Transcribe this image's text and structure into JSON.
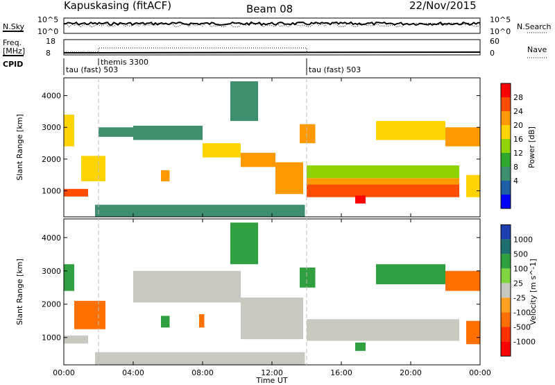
{
  "header": {
    "station": "Kapuskasing (fitACF)",
    "beam": "Beam 08",
    "date": "22/Nov/2015"
  },
  "strip_panels": {
    "nsky": {
      "left_label": "N.Sky",
      "left_ticks": [
        "10^5",
        "10^0"
      ],
      "right_ticks": [
        "10^5",
        "10^0"
      ],
      "right_label": "N.Search"
    },
    "freq": {
      "left_label_1": "Freq.",
      "left_label_2": "[MHz]",
      "left_ticks": [
        "18",
        "8"
      ],
      "right_ticks": [
        "60",
        "0"
      ],
      "right_label": "Nave"
    },
    "cpid": {
      "label": "CPID",
      "segments": [
        "tau (fast) 503",
        "themis 3300",
        "tau (fast) 503"
      ]
    }
  },
  "x_axis": {
    "label": "Time UT",
    "ticks": [
      "00:00",
      "04:00",
      "08:00",
      "12:00",
      "16:00",
      "20:00",
      "00:00"
    ]
  },
  "chart_data": [
    {
      "type": "heatmap",
      "title": "",
      "xlabel": "Time UT",
      "ylabel": "Slant Range [km]",
      "xlim_hours": [
        0,
        24
      ],
      "ylim_km": [
        180,
        4560
      ],
      "yticks": [
        "1000",
        "2000",
        "3000",
        "4000"
      ],
      "colorbar": {
        "label": "Power [dB]",
        "ticks": [
          "28",
          "24",
          "20",
          "16",
          "12",
          "8",
          "4"
        ],
        "colors": [
          "#ff0000",
          "#ff4d00",
          "#ff9900",
          "#ffd400",
          "#8fd400",
          "#2fa82f",
          "#3f8f6f",
          "#1f5fa8",
          "#0000ff"
        ]
      },
      "regions": [
        {
          "t0": 0.0,
          "t1": 1.4,
          "r0": 820,
          "r1": 1060,
          "v": 26
        },
        {
          "t0": 0.0,
          "t1": 0.6,
          "r0": 2400,
          "r1": 3400,
          "v": 18
        },
        {
          "t0": 1.0,
          "t1": 2.4,
          "r0": 1300,
          "r1": 2100,
          "v": 16
        },
        {
          "t0": 5.6,
          "t1": 6.1,
          "r0": 1300,
          "r1": 1650,
          "v": 20
        },
        {
          "t0": 1.8,
          "t1": 13.9,
          "r0": 180,
          "r1": 560,
          "v": 8
        },
        {
          "t0": 2.0,
          "t1": 4.0,
          "r0": 2700,
          "r1": 3000,
          "v": 6
        },
        {
          "t0": 4.0,
          "t1": 8.0,
          "r0": 2600,
          "r1": 3050,
          "v": 8
        },
        {
          "t0": 8.0,
          "t1": 10.2,
          "r0": 2050,
          "r1": 2500,
          "v": 18
        },
        {
          "t0": 10.2,
          "t1": 12.2,
          "r0": 1750,
          "r1": 2200,
          "v": 20
        },
        {
          "t0": 12.2,
          "t1": 13.8,
          "r0": 900,
          "r1": 1900,
          "v": 20
        },
        {
          "t0": 9.6,
          "t1": 11.2,
          "r0": 3200,
          "r1": 4450,
          "v": 8
        },
        {
          "t0": 13.6,
          "t1": 14.5,
          "r0": 2500,
          "r1": 3100,
          "v": 22
        },
        {
          "t0": 14.0,
          "t1": 22.8,
          "r0": 800,
          "r1": 1200,
          "v": 26
        },
        {
          "t0": 14.0,
          "t1": 22.8,
          "r0": 1200,
          "r1": 1400,
          "v": 22
        },
        {
          "t0": 14.0,
          "t1": 22.8,
          "r0": 1400,
          "r1": 1800,
          "v": 13
        },
        {
          "t0": 16.8,
          "t1": 17.4,
          "r0": 600,
          "r1": 850,
          "v": 28
        },
        {
          "t0": 22.0,
          "t1": 24.0,
          "r0": 2400,
          "r1": 3000,
          "v": 22
        },
        {
          "t0": 18.0,
          "t1": 22.0,
          "r0": 2600,
          "r1": 3200,
          "v": 16
        },
        {
          "t0": 23.2,
          "t1": 24.0,
          "r0": 800,
          "r1": 1500,
          "v": 18
        }
      ]
    },
    {
      "type": "heatmap",
      "title": "",
      "xlabel": "Time UT",
      "ylabel": "Slant Range [km]",
      "xlim_hours": [
        0,
        24
      ],
      "ylim_km": [
        180,
        4560
      ],
      "yticks": [
        "1000",
        "2000",
        "3000",
        "4000"
      ],
      "colorbar": {
        "label": "Velocity [m s^-1]",
        "ticks": [
          "1000",
          "500",
          "100",
          "25",
          "-25",
          "-100",
          "-500",
          "-1000"
        ],
        "colors": [
          "#1f3fb0",
          "#1f6f6f",
          "#2f9f3f",
          "#7fd43f",
          "#c8c8c0",
          "#ffa020",
          "#ff7000",
          "#ff3000",
          "#ff0000"
        ]
      },
      "regions": [
        {
          "t0": 0.0,
          "t1": 1.4,
          "r0": 820,
          "r1": 1060,
          "v": 0
        },
        {
          "t0": 0.6,
          "t1": 2.4,
          "r0": 1250,
          "r1": 2100,
          "v": -300
        },
        {
          "t0": 0.0,
          "t1": 0.6,
          "r0": 2400,
          "r1": 3200,
          "v": 150
        },
        {
          "t0": 5.6,
          "t1": 6.1,
          "r0": 1300,
          "r1": 1650,
          "v": 150
        },
        {
          "t0": 7.8,
          "t1": 8.1,
          "r0": 1300,
          "r1": 1700,
          "v": -150
        },
        {
          "t0": 1.8,
          "t1": 13.9,
          "r0": 180,
          "r1": 560,
          "v": 0
        },
        {
          "t0": 4.0,
          "t1": 10.2,
          "r0": 2050,
          "r1": 3000,
          "v": 0
        },
        {
          "t0": 10.2,
          "t1": 13.8,
          "r0": 950,
          "r1": 2200,
          "v": 0
        },
        {
          "t0": 9.6,
          "t1": 11.2,
          "r0": 3200,
          "r1": 4450,
          "v": 60
        },
        {
          "t0": 13.6,
          "t1": 14.5,
          "r0": 2500,
          "r1": 3100,
          "v": 150
        },
        {
          "t0": 14.0,
          "t1": 22.8,
          "r0": 900,
          "r1": 1550,
          "v": 0
        },
        {
          "t0": 16.8,
          "t1": 17.4,
          "r0": 600,
          "r1": 850,
          "v": 150
        },
        {
          "t0": 22.0,
          "t1": 24.0,
          "r0": 2400,
          "r1": 3000,
          "v": -150
        },
        {
          "t0": 18.0,
          "t1": 22.0,
          "r0": 2600,
          "r1": 3200,
          "v": 150
        },
        {
          "t0": 23.2,
          "t1": 24.0,
          "r0": 800,
          "r1": 1500,
          "v": -100
        }
      ]
    }
  ]
}
